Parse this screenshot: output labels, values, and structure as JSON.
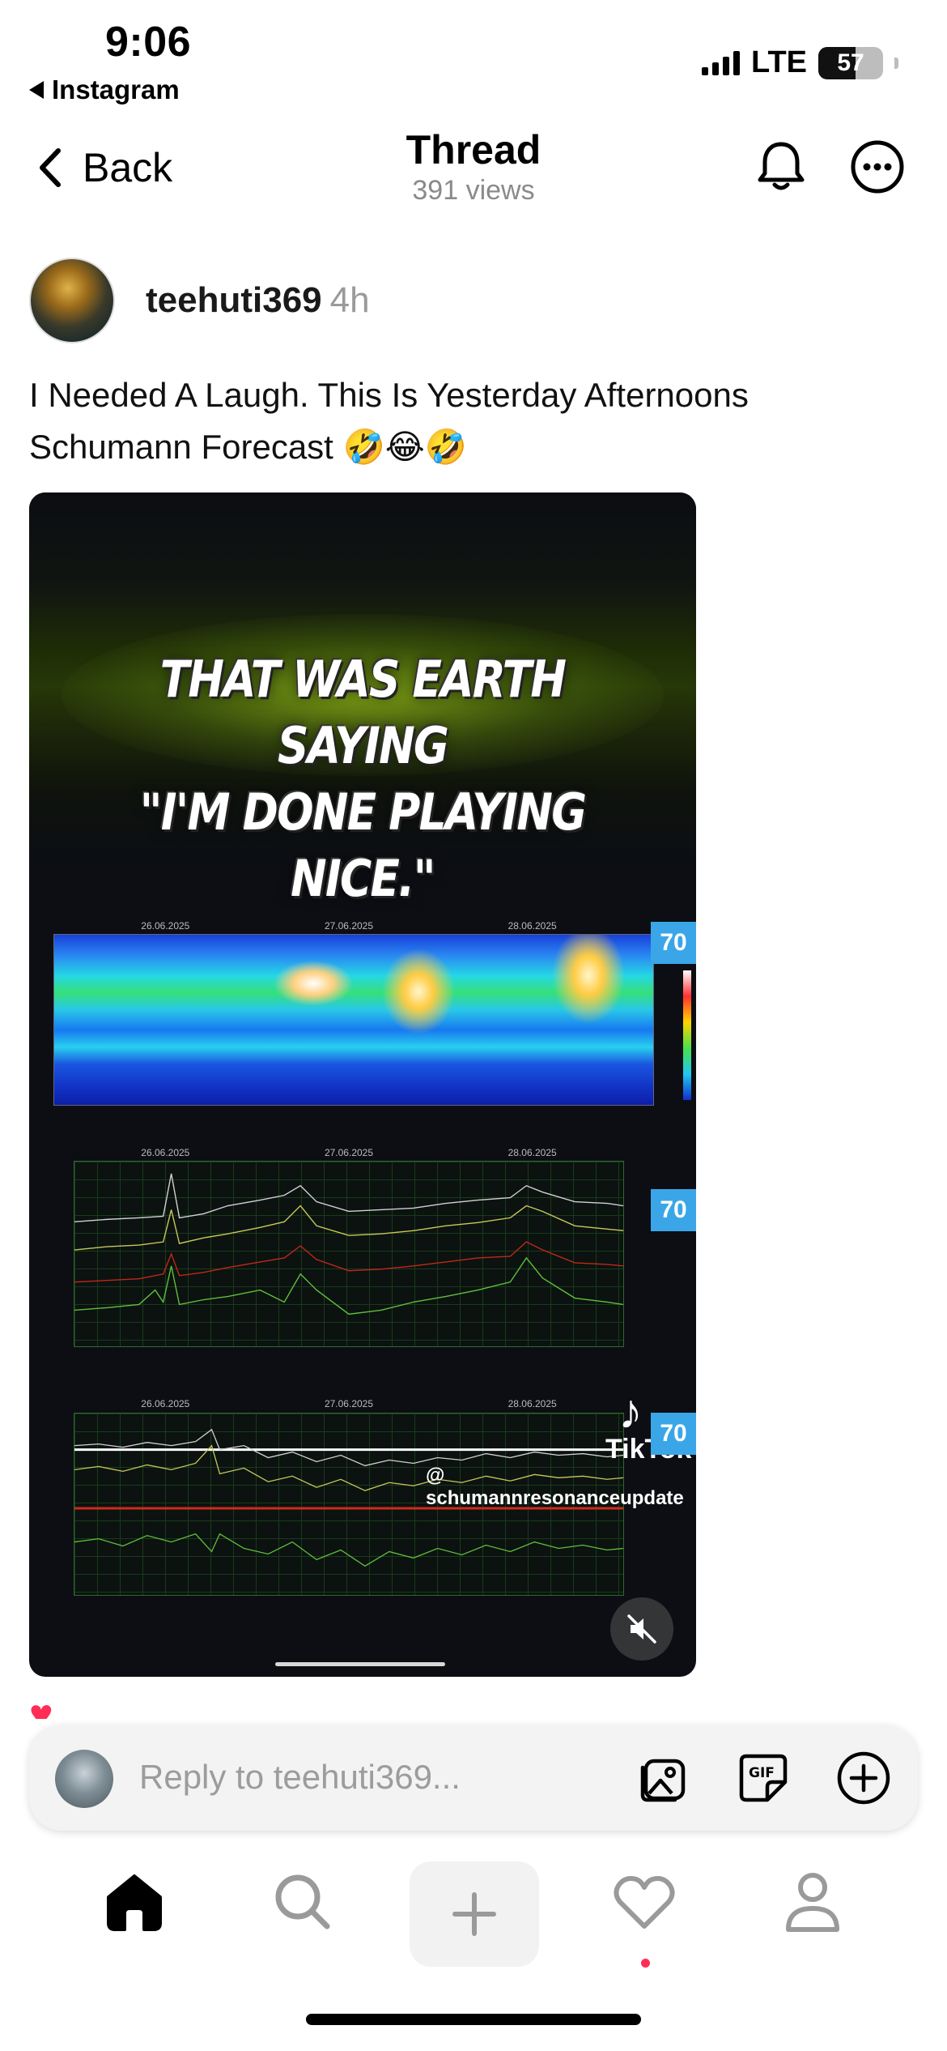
{
  "status_bar": {
    "time": "9:06",
    "back_app": "Instagram",
    "network": "LTE",
    "battery": "57"
  },
  "nav": {
    "back_label": "Back",
    "title": "Thread",
    "subtitle": "391 views",
    "icons": [
      "bell-icon",
      "more-icon"
    ]
  },
  "post": {
    "username": "teehuti369",
    "time_ago": "4h",
    "text": "I Needed A Laugh. This Is Yesterday Afternoons Schumann Forecast 🤣😂🤣",
    "media": {
      "caption_line1": "THAT WAS EARTH SAYING",
      "caption_line2": "\"I'M DONE PLAYING NICE.\"",
      "dates": [
        "26.06.2025",
        "27.06.2025",
        "28.06.2025"
      ],
      "badge": "70",
      "watermark_brand": "TikTok",
      "watermark_handle": "@ schumannresonanceupdate"
    }
  },
  "reply": {
    "placeholder": "Reply to teehuti369..."
  },
  "tabs": [
    "home",
    "search",
    "create",
    "activity",
    "profile"
  ],
  "colors": {
    "accent_red": "#ff2d55",
    "placeholder_gray": "#9c9c9c"
  }
}
